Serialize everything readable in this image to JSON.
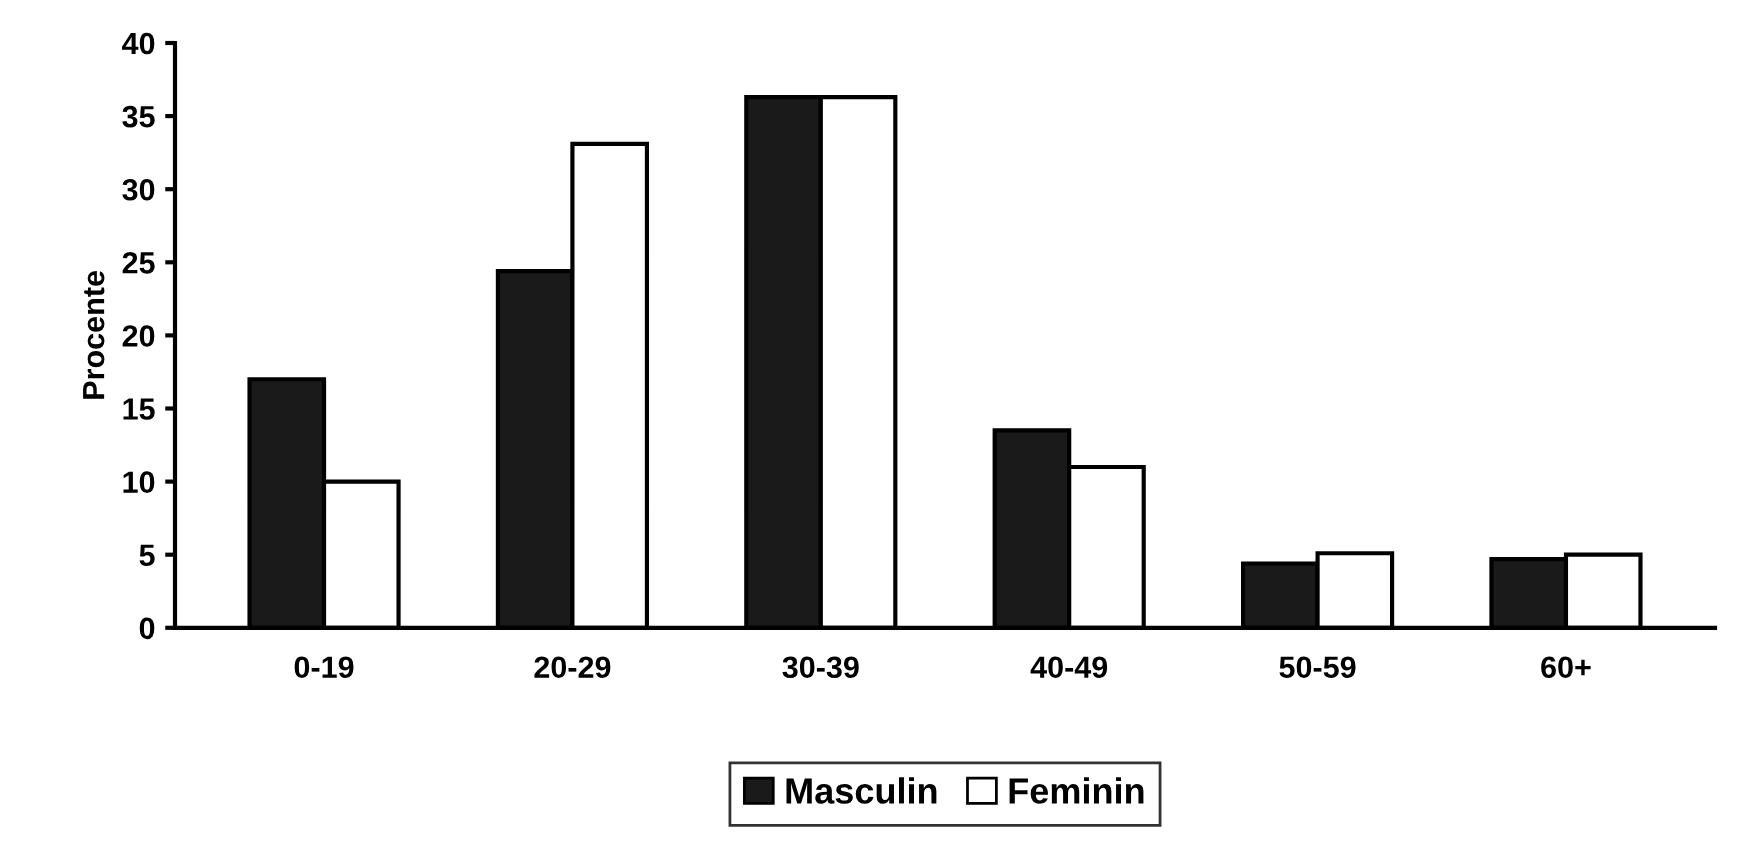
{
  "chart_data": {
    "type": "bar",
    "ylabel": "Procente",
    "categories": [
      "0-19",
      "20-29",
      "30-39",
      "40-49",
      "50-59",
      "60+"
    ],
    "series": [
      {
        "name": "Masculin",
        "color": "#1a1a1a",
        "values": [
          17,
          24.4,
          36.3,
          13.5,
          4.4,
          4.7
        ]
      },
      {
        "name": "Feminin",
        "color": "#ffffff",
        "values": [
          10,
          33.1,
          36.3,
          11,
          5.1,
          5
        ]
      }
    ],
    "ylim": [
      0,
      40
    ],
    "yticks": [
      0,
      5,
      10,
      15,
      20,
      25,
      30,
      35,
      40
    ],
    "grid": false,
    "legend": "bottom"
  }
}
